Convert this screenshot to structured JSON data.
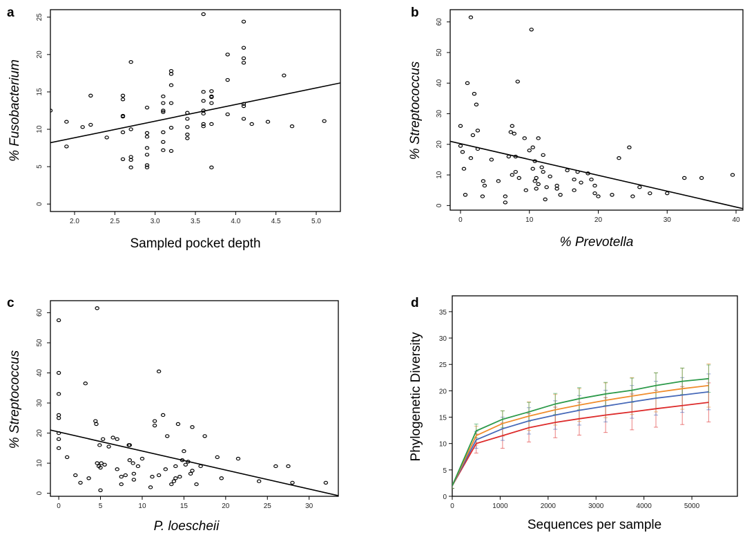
{
  "chart_data": [
    {
      "panel": "a",
      "type": "scatter",
      "xlabel": "Sampled pocket depth",
      "ylabel": "% Fusobacterium",
      "xlim": [
        1.7,
        5.3
      ],
      "ylim": [
        -1,
        26
      ],
      "xticks": [
        "2.0",
        "2.5",
        "3.0",
        "3.5",
        "4.0",
        "4.5",
        "5.0"
      ],
      "yticks": [
        "0",
        "5",
        "10",
        "15",
        "20",
        "25"
      ],
      "trendline": [
        [
          1.7,
          8.2
        ],
        [
          5.3,
          16.2
        ]
      ],
      "points": [
        [
          1.7,
          12.5
        ],
        [
          1.9,
          11.0
        ],
        [
          1.9,
          7.7
        ],
        [
          2.1,
          10.3
        ],
        [
          2.2,
          14.5
        ],
        [
          2.2,
          10.6
        ],
        [
          2.4,
          8.9
        ],
        [
          2.6,
          14.5
        ],
        [
          2.6,
          14.0
        ],
        [
          2.6,
          11.8
        ],
        [
          2.6,
          11.7
        ],
        [
          2.6,
          9.6
        ],
        [
          2.6,
          6.0
        ],
        [
          2.7,
          19.0
        ],
        [
          2.7,
          10.0
        ],
        [
          2.7,
          6.3
        ],
        [
          2.7,
          5.9
        ],
        [
          2.7,
          4.9
        ],
        [
          2.9,
          12.9
        ],
        [
          2.9,
          9.5
        ],
        [
          2.9,
          9.0
        ],
        [
          2.9,
          7.5
        ],
        [
          2.9,
          6.6
        ],
        [
          2.9,
          5.2
        ],
        [
          2.9,
          4.9
        ],
        [
          3.1,
          14.4
        ],
        [
          3.1,
          13.5
        ],
        [
          3.1,
          12.5
        ],
        [
          3.1,
          12.3
        ],
        [
          3.1,
          9.6
        ],
        [
          3.1,
          8.3
        ],
        [
          3.1,
          7.2
        ],
        [
          3.2,
          17.8
        ],
        [
          3.2,
          17.4
        ],
        [
          3.2,
          15.9
        ],
        [
          3.2,
          13.5
        ],
        [
          3.2,
          10.2
        ],
        [
          3.2,
          7.1
        ],
        [
          3.4,
          12.2
        ],
        [
          3.4,
          11.4
        ],
        [
          3.4,
          10.3
        ],
        [
          3.4,
          9.3
        ],
        [
          3.4,
          8.8
        ],
        [
          3.6,
          25.4
        ],
        [
          3.6,
          15.0
        ],
        [
          3.6,
          13.8
        ],
        [
          3.6,
          12.5
        ],
        [
          3.6,
          12.1
        ],
        [
          3.6,
          10.7
        ],
        [
          3.6,
          10.4
        ],
        [
          3.7,
          15.1
        ],
        [
          3.7,
          14.4
        ],
        [
          3.7,
          14.3
        ],
        [
          3.7,
          13.5
        ],
        [
          3.7,
          10.7
        ],
        [
          3.7,
          4.9
        ],
        [
          3.9,
          20.0
        ],
        [
          3.9,
          16.6
        ],
        [
          3.9,
          12.0
        ],
        [
          4.1,
          24.4
        ],
        [
          4.1,
          20.9
        ],
        [
          4.1,
          19.5
        ],
        [
          4.1,
          18.9
        ],
        [
          4.1,
          13.4
        ],
        [
          4.1,
          13.1
        ],
        [
          4.1,
          11.4
        ],
        [
          4.2,
          10.7
        ],
        [
          4.4,
          11.0
        ],
        [
          4.6,
          17.2
        ],
        [
          4.7,
          10.4
        ],
        [
          5.1,
          11.1
        ]
      ]
    },
    {
      "panel": "b",
      "type": "scatter",
      "xlabel": "% Prevotella",
      "ylabel": "% Streptococcus",
      "xlim": [
        -1.5,
        41
      ],
      "ylim": [
        -1.5,
        64
      ],
      "xticks": [
        "0",
        "10",
        "20",
        "30",
        "40"
      ],
      "yticks": [
        "0",
        "10",
        "20",
        "30",
        "40",
        "50",
        "60"
      ],
      "trendline": [
        [
          -1.5,
          21.0
        ],
        [
          41,
          -1.0
        ]
      ],
      "points": [
        [
          0,
          26
        ],
        [
          0,
          19.5
        ],
        [
          0.3,
          17.5
        ],
        [
          0.5,
          12
        ],
        [
          0.7,
          3.5
        ],
        [
          1,
          40
        ],
        [
          1.5,
          15.5
        ],
        [
          1.8,
          23
        ],
        [
          1.5,
          61.5
        ],
        [
          2,
          36.5
        ],
        [
          2.3,
          33
        ],
        [
          2.5,
          24.5
        ],
        [
          2.5,
          18.5
        ],
        [
          3.3,
          8
        ],
        [
          3.5,
          6.5
        ],
        [
          3.2,
          3
        ],
        [
          4.5,
          15
        ],
        [
          5.5,
          8
        ],
        [
          6.5,
          3
        ],
        [
          6.5,
          1
        ],
        [
          7,
          16
        ],
        [
          7.3,
          24
        ],
        [
          7.5,
          26
        ],
        [
          7.8,
          23.5
        ],
        [
          7.5,
          10
        ],
        [
          8,
          11
        ],
        [
          8.3,
          40.5
        ],
        [
          8,
          16
        ],
        [
          8.5,
          9
        ],
        [
          9.3,
          22
        ],
        [
          9.5,
          5
        ],
        [
          10,
          18
        ],
        [
          10.3,
          57.5
        ],
        [
          10.5,
          12
        ],
        [
          10.5,
          19
        ],
        [
          10.8,
          14.5
        ],
        [
          10.8,
          8
        ],
        [
          11,
          9
        ],
        [
          11,
          5.5
        ],
        [
          11.3,
          22
        ],
        [
          11.3,
          7
        ],
        [
          11.8,
          12.5
        ],
        [
          12,
          16.5
        ],
        [
          12,
          11
        ],
        [
          12.3,
          2
        ],
        [
          12.5,
          6
        ],
        [
          13,
          9.5
        ],
        [
          14,
          5.5
        ],
        [
          14.5,
          3.5
        ],
        [
          14,
          6.5
        ],
        [
          15.5,
          11.5
        ],
        [
          16.5,
          8.5
        ],
        [
          16.5,
          5
        ],
        [
          17,
          11
        ],
        [
          17.5,
          7.5
        ],
        [
          18.5,
          10.5
        ],
        [
          19,
          8.5
        ],
        [
          19.5,
          6.5
        ],
        [
          19.5,
          4
        ],
        [
          20,
          3
        ],
        [
          22,
          3.5
        ],
        [
          23,
          15.5
        ],
        [
          24.5,
          19
        ],
        [
          25,
          3
        ],
        [
          26,
          6
        ],
        [
          27.5,
          4
        ],
        [
          30,
          4
        ],
        [
          32.5,
          9
        ],
        [
          35,
          9
        ],
        [
          39.5,
          10
        ]
      ]
    },
    {
      "panel": "c",
      "type": "scatter",
      "xlabel": "P. loescheii",
      "ylabel": "% Streptococcus",
      "xlim": [
        -1,
        33.5
      ],
      "ylim": [
        -1,
        64
      ],
      "xticks": [
        "0",
        "5",
        "10",
        "15",
        "20",
        "25",
        "30"
      ],
      "yticks": [
        "0",
        "10",
        "20",
        "30",
        "40",
        "50",
        "60"
      ],
      "trendline": [
        [
          -1,
          21.0
        ],
        [
          33.5,
          -0.8
        ]
      ],
      "points": [
        [
          0,
          57.5
        ],
        [
          0,
          40
        ],
        [
          0,
          33
        ],
        [
          0,
          26
        ],
        [
          0,
          25
        ],
        [
          0,
          20
        ],
        [
          0,
          18
        ],
        [
          0,
          15
        ],
        [
          1,
          12
        ],
        [
          2,
          6
        ],
        [
          2.6,
          3.5
        ],
        [
          3.2,
          36.5
        ],
        [
          3.6,
          5
        ],
        [
          4.4,
          24
        ],
        [
          4.6,
          61.5
        ],
        [
          4.5,
          23
        ],
        [
          4.6,
          10
        ],
        [
          4.8,
          9
        ],
        [
          4.9,
          16
        ],
        [
          5,
          8.5
        ],
        [
          5.1,
          10
        ],
        [
          5.3,
          18
        ],
        [
          5,
          1
        ],
        [
          5.5,
          9.5
        ],
        [
          6,
          15.5
        ],
        [
          6.5,
          18.5
        ],
        [
          7,
          8
        ],
        [
          7,
          18
        ],
        [
          7.5,
          5.5
        ],
        [
          7.5,
          3
        ],
        [
          8,
          6
        ],
        [
          8.4,
          16
        ],
        [
          8.5,
          16
        ],
        [
          8.5,
          11
        ],
        [
          8.9,
          10
        ],
        [
          9,
          6.5
        ],
        [
          9,
          4.5
        ],
        [
          9.5,
          9
        ],
        [
          10,
          11.5
        ],
        [
          11,
          2
        ],
        [
          11.2,
          5.5
        ],
        [
          11.5,
          24
        ],
        [
          11.5,
          22.5
        ],
        [
          12,
          6
        ],
        [
          12,
          40.5
        ],
        [
          12.5,
          26
        ],
        [
          12.8,
          8
        ],
        [
          13,
          19
        ],
        [
          13.5,
          3
        ],
        [
          13.8,
          4
        ],
        [
          14,
          9
        ],
        [
          14,
          5
        ],
        [
          14.3,
          23
        ],
        [
          14.5,
          5.5
        ],
        [
          14.8,
          11
        ],
        [
          15,
          14
        ],
        [
          15.2,
          9.5
        ],
        [
          15.5,
          10.5
        ],
        [
          15.8,
          6.5
        ],
        [
          16,
          22
        ],
        [
          16,
          7.5
        ],
        [
          16.5,
          3
        ],
        [
          17,
          9
        ],
        [
          17.5,
          19
        ],
        [
          19,
          12
        ],
        [
          19.5,
          5
        ],
        [
          21.5,
          11.5
        ],
        [
          24,
          4
        ],
        [
          26,
          9
        ],
        [
          27.5,
          9
        ],
        [
          28,
          3.5
        ],
        [
          32,
          3.5
        ]
      ]
    },
    {
      "panel": "d",
      "type": "line",
      "xlabel": "Sequences per sample",
      "ylabel": "Phylogenetic Diversity",
      "xlim": [
        0,
        5950
      ],
      "ylim": [
        0,
        38
      ],
      "xticks": [
        "0",
        "1000",
        "2000",
        "3000",
        "4000",
        "5000"
      ],
      "yticks": [
        "0",
        "5",
        "10",
        "15",
        "20",
        "25",
        "30",
        "35"
      ],
      "x": [
        0,
        500,
        1050,
        1600,
        2150,
        2650,
        3200,
        3750,
        4250,
        4800,
        5350
      ],
      "series": [
        {
          "color": "#dd2a2a",
          "values": [
            2,
            10.0,
            11.5,
            13.0,
            14.0,
            14.7,
            15.4,
            16.0,
            16.6,
            17.2,
            17.8
          ],
          "err": [
            0.5,
            1.8,
            2.4,
            2.7,
            2.9,
            3.1,
            3.3,
            3.4,
            3.5,
            3.6,
            3.7
          ]
        },
        {
          "color": "#4668b8",
          "values": [
            2,
            10.7,
            12.8,
            14.3,
            15.4,
            16.3,
            17.1,
            17.9,
            18.6,
            19.2,
            19.8
          ],
          "err": [
            0.5,
            1.6,
            2.2,
            2.5,
            2.7,
            2.8,
            3.0,
            3.1,
            3.2,
            3.3,
            3.4
          ]
        },
        {
          "color": "#f08c2c",
          "values": [
            2,
            11.5,
            13.8,
            15.2,
            16.4,
            17.3,
            18.2,
            19.0,
            19.7,
            20.4,
            21.0
          ],
          "err": [
            0.5,
            1.8,
            2.4,
            2.7,
            2.9,
            3.1,
            3.3,
            3.5,
            3.7,
            3.9,
            4.1
          ]
        },
        {
          "color": "#2c9a4a",
          "values": [
            2,
            12.4,
            14.6,
            16.0,
            17.5,
            18.5,
            19.4,
            20.1,
            21.0,
            21.8,
            22.3
          ],
          "err": [
            0.5,
            1.3,
            1.6,
            1.8,
            2.0,
            2.1,
            2.2,
            2.3,
            2.4,
            2.5,
            2.6
          ]
        }
      ]
    }
  ]
}
